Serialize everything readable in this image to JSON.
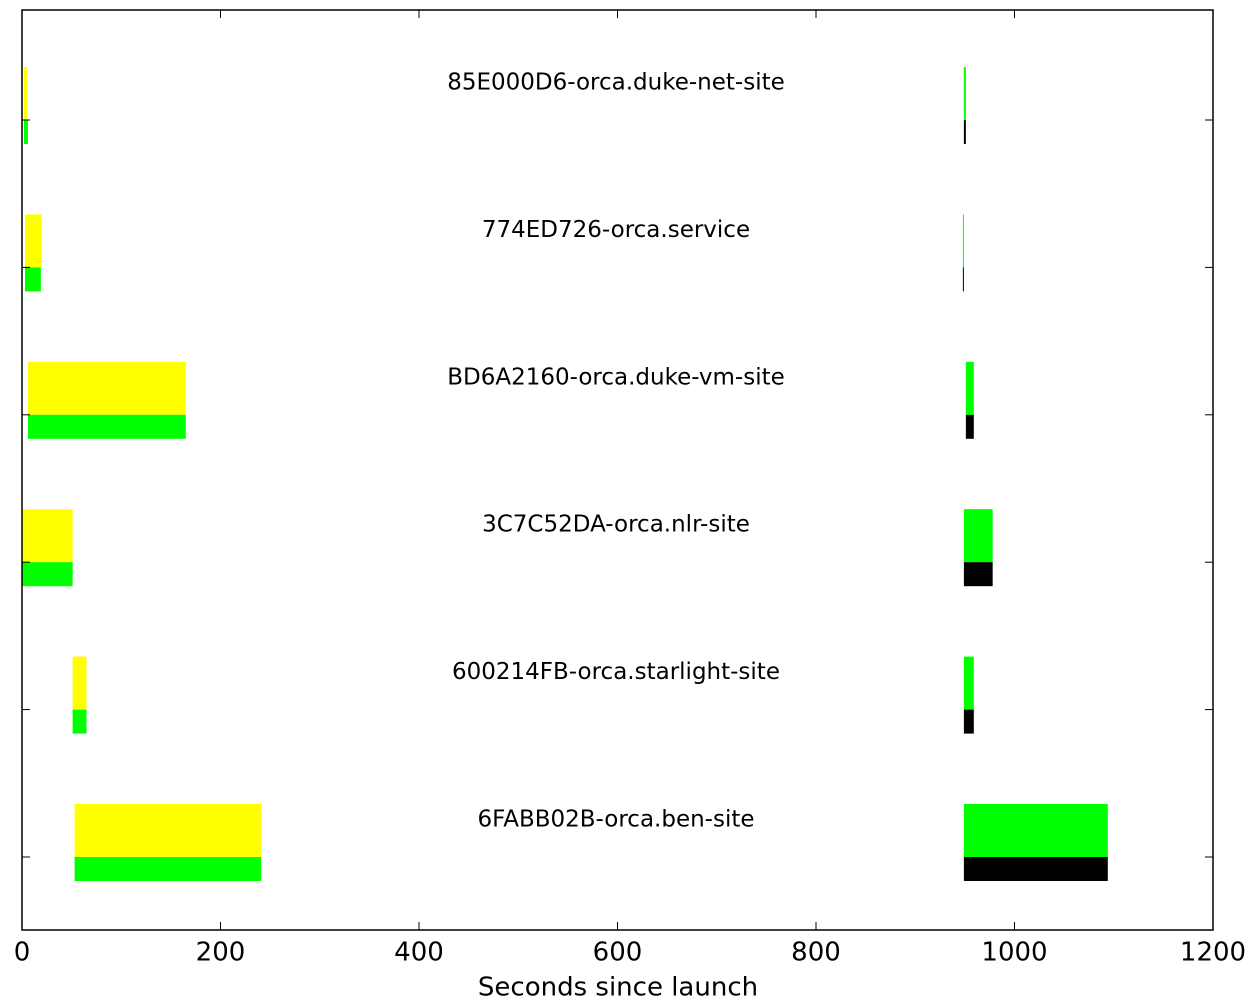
{
  "chart_data": {
    "type": "broken_barh",
    "xlabel": "Seconds since launch",
    "categories": [
      "85E000D6-orca.duke-net-site",
      "774ED726-orca.service",
      "BD6A2160-orca.duke-vm-site",
      "3C7C52DA-orca.nlr-site",
      "600214FB-orca.starlight-site",
      "6FABB02B-orca.ben-site"
    ],
    "series": [
      {
        "color": "#ffff00",
        "starts": [
          2,
          3,
          6,
          0,
          51,
          53
        ],
        "values": [
          3,
          17,
          159,
          51,
          14,
          188
        ]
      },
      {
        "color": "#00ff00",
        "starts": [
          2,
          3,
          6,
          0,
          51,
          53
        ],
        "values": [
          4,
          16,
          159,
          51,
          14,
          188
        ]
      },
      {
        "color": "#00ff00",
        "starts": [
          949,
          948,
          951,
          949,
          949,
          949
        ],
        "values": [
          2,
          1,
          8,
          29,
          10,
          145
        ]
      },
      {
        "color": "#000000",
        "starts": [
          949,
          948,
          951,
          949,
          949,
          949
        ],
        "values": [
          2,
          1,
          8,
          29,
          10,
          145
        ]
      }
    ],
    "xlim": [
      0,
      1200
    ],
    "xticks": [
      0,
      200,
      400,
      600,
      800,
      1000,
      1200
    ]
  }
}
